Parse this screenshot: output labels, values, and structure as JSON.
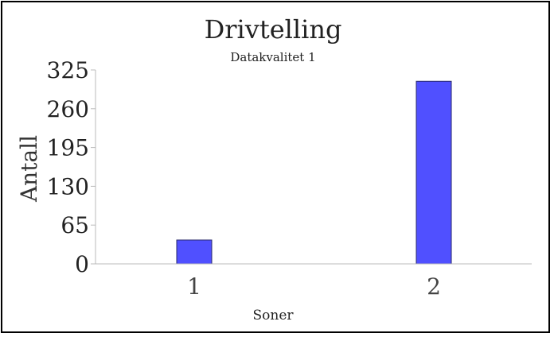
{
  "chart_data": {
    "type": "bar",
    "title": "Drivtelling",
    "subtitle": "Datakvalitet 1",
    "xlabel": "Soner",
    "ylabel": "Antall",
    "categories": [
      "1",
      "2"
    ],
    "values": [
      40,
      306
    ],
    "ylim": [
      0,
      325
    ],
    "yticks": [
      "0",
      "65",
      "130",
      "195",
      "260",
      "325"
    ],
    "grid": false,
    "legend": "none",
    "colors": {
      "bar": "#5050ff",
      "bar_edge": "#2a2a6a",
      "axis": "#bbbbbb",
      "text": "#222222"
    }
  }
}
